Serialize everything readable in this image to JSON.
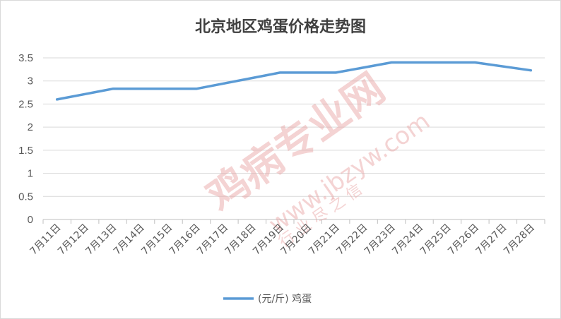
{
  "chart_data": {
    "type": "line",
    "title": "北京地区鸡蛋价格走势图",
    "categories": [
      "7月11日",
      "7月12日",
      "7月13日",
      "7月14日",
      "7月15日",
      "7月16日",
      "7月17日",
      "7月18日",
      "7月19日",
      "7月20日",
      "7月21日",
      "7月22日",
      "7月23日",
      "7月24日",
      "7月25日",
      "7月26日",
      "7月27日",
      "7月28日"
    ],
    "series": [
      {
        "name": "(元/斤) 鸡蛋",
        "color": "#5b9bd5",
        "points": [
          {
            "x": "7月11日",
            "y": 2.6
          },
          {
            "x": "7月13日",
            "y": 2.83
          },
          {
            "x": "7月16日",
            "y": 2.83
          },
          {
            "x": "7月19日",
            "y": 3.18
          },
          {
            "x": "7月21日",
            "y": 3.18
          },
          {
            "x": "7月23日",
            "y": 3.4
          },
          {
            "x": "7月26日",
            "y": 3.4
          },
          {
            "x": "7月28日",
            "y": 3.23
          }
        ]
      }
    ],
    "yticks": [
      "0",
      "0.5",
      "1",
      "1.5",
      "2",
      "2.5",
      "3",
      "3.5"
    ],
    "ylim": [
      0,
      3.5
    ],
    "grid": true,
    "legend_position": "bottom"
  },
  "watermark": {
    "text_main": "鸡病专业网",
    "text_url": "www.jbzyw.com",
    "text_script": "行 业 尽 之 信",
    "color": "#e8a0a0"
  }
}
